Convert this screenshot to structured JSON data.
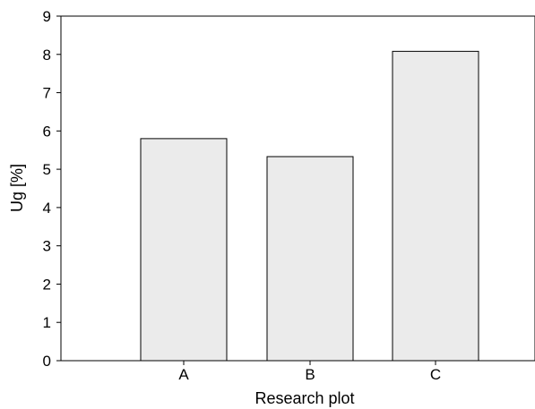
{
  "chart_data": {
    "type": "bar",
    "title": "",
    "xlabel": "Research plot",
    "ylabel": "Ug [%]",
    "categories": [
      "A",
      "B",
      "C"
    ],
    "values": [
      5.8,
      5.33,
      8.08
    ],
    "ylim": [
      0,
      9
    ],
    "yticks": [
      "0",
      "1",
      "2",
      "3",
      "4",
      "5",
      "6",
      "7",
      "8",
      "9"
    ],
    "grid": false,
    "legend": "none",
    "bar_color": "#ebebeb",
    "bar_edge_color": "#000000"
  }
}
